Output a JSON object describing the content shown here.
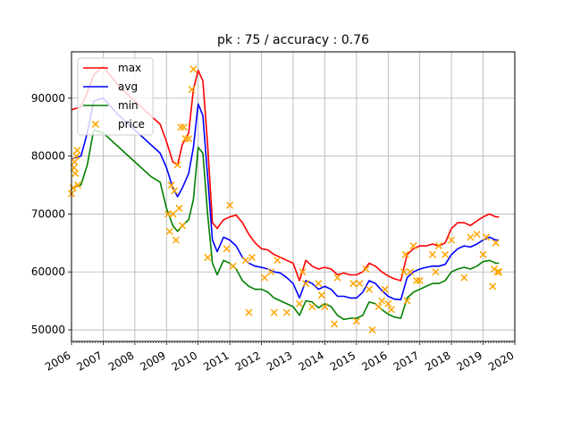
{
  "chart_data": {
    "type": "line",
    "title": "pk : 75 / accuracy : 0.76",
    "xlabel": "",
    "ylabel": "",
    "xlim": [
      2006.0,
      2020.0
    ],
    "ylim": [
      48000,
      98000
    ],
    "grid": true,
    "legend_position": "top-left",
    "x_ticks": [
      2006,
      2007,
      2008,
      2009,
      2010,
      2011,
      2012,
      2013,
      2014,
      2015,
      2016,
      2017,
      2018,
      2019,
      2020
    ],
    "x_tick_labels": [
      "2006",
      "2007",
      "2008",
      "2009",
      "2010",
      "2011",
      "2012",
      "2013",
      "2014",
      "2015",
      "2016",
      "2017",
      "2018",
      "2019",
      "2020"
    ],
    "y_ticks": [
      50000,
      60000,
      70000,
      80000,
      90000
    ],
    "y_tick_labels": [
      "50000",
      "60000",
      "70000",
      "80000",
      "90000"
    ],
    "series": [
      {
        "name": "max",
        "color": "#ff0000",
        "style": "line",
        "x": [
          2006.0,
          2006.3,
          2006.5,
          2006.7,
          2007.0,
          2007.5,
          2008.0,
          2008.5,
          2008.8,
          2009.0,
          2009.2,
          2009.35,
          2009.5,
          2009.7,
          2009.85,
          2010.0,
          2010.15,
          2010.3,
          2010.45,
          2010.6,
          2010.8,
          2011.0,
          2011.2,
          2011.4,
          2011.6,
          2011.8,
          2012.0,
          2012.2,
          2012.4,
          2012.6,
          2012.8,
          2013.0,
          2013.2,
          2013.4,
          2013.6,
          2013.8,
          2014.0,
          2014.2,
          2014.4,
          2014.6,
          2014.8,
          2015.0,
          2015.2,
          2015.4,
          2015.6,
          2015.8,
          2016.0,
          2016.2,
          2016.4,
          2016.6,
          2016.8,
          2017.0,
          2017.2,
          2017.4,
          2017.6,
          2017.8,
          2018.0,
          2018.2,
          2018.4,
          2018.6,
          2018.8,
          2019.0,
          2019.2,
          2019.4,
          2019.5
        ],
        "y": [
          88000,
          88500,
          91000,
          94000,
          95500,
          92000,
          89500,
          87000,
          85500,
          82500,
          79000,
          78500,
          82000,
          84000,
          91500,
          94800,
          93000,
          82000,
          68500,
          67500,
          69000,
          69500,
          69800,
          68500,
          66500,
          65000,
          64000,
          63800,
          63000,
          62500,
          62000,
          61500,
          58500,
          62000,
          61000,
          60500,
          60800,
          60500,
          59500,
          59800,
          59500,
          59500,
          60000,
          61500,
          61000,
          60000,
          59300,
          58800,
          58500,
          63000,
          64000,
          64500,
          64500,
          64800,
          64500,
          65000,
          67500,
          68500,
          68500,
          68000,
          68800,
          69500,
          70000,
          69500,
          69500
        ]
      },
      {
        "name": "avg",
        "color": "#0000ff",
        "style": "line",
        "x": [
          2006.0,
          2006.3,
          2006.5,
          2006.7,
          2007.0,
          2007.5,
          2008.0,
          2008.5,
          2008.8,
          2009.0,
          2009.2,
          2009.35,
          2009.5,
          2009.7,
          2009.85,
          2010.0,
          2010.15,
          2010.3,
          2010.45,
          2010.6,
          2010.8,
          2011.0,
          2011.2,
          2011.4,
          2011.6,
          2011.8,
          2012.0,
          2012.2,
          2012.4,
          2012.6,
          2012.8,
          2013.0,
          2013.2,
          2013.4,
          2013.6,
          2013.8,
          2014.0,
          2014.2,
          2014.4,
          2014.6,
          2014.8,
          2015.0,
          2015.2,
          2015.4,
          2015.6,
          2015.8,
          2016.0,
          2016.2,
          2016.4,
          2016.6,
          2016.8,
          2017.0,
          2017.2,
          2017.4,
          2017.6,
          2017.8,
          2018.0,
          2018.2,
          2018.4,
          2018.6,
          2018.8,
          2019.0,
          2019.2,
          2019.4,
          2019.5
        ],
        "y": [
          79500,
          80000,
          84000,
          89500,
          90000,
          87000,
          84500,
          82000,
          80500,
          78000,
          74500,
          73000,
          74500,
          77000,
          81500,
          89000,
          87000,
          76500,
          65500,
          63500,
          66000,
          65500,
          64500,
          62500,
          61500,
          61000,
          60800,
          60500,
          60000,
          59800,
          59000,
          58000,
          55500,
          58500,
          58000,
          57000,
          57500,
          57000,
          55800,
          55800,
          55500,
          55500,
          56500,
          58500,
          58000,
          56800,
          55800,
          55300,
          55200,
          59000,
          60000,
          60500,
          60800,
          61000,
          61000,
          61300,
          63000,
          64000,
          64500,
          64300,
          64800,
          65500,
          66000,
          65500,
          65500
        ]
      },
      {
        "name": "min",
        "color": "#008000",
        "style": "line",
        "x": [
          2006.0,
          2006.3,
          2006.5,
          2006.7,
          2007.0,
          2007.5,
          2008.0,
          2008.5,
          2008.8,
          2009.0,
          2009.2,
          2009.35,
          2009.5,
          2009.7,
          2009.85,
          2010.0,
          2010.15,
          2010.3,
          2010.45,
          2010.6,
          2010.8,
          2011.0,
          2011.2,
          2011.4,
          2011.6,
          2011.8,
          2012.0,
          2012.2,
          2012.4,
          2012.6,
          2012.8,
          2013.0,
          2013.2,
          2013.4,
          2013.6,
          2013.8,
          2014.0,
          2014.2,
          2014.4,
          2014.6,
          2014.8,
          2015.0,
          2015.2,
          2015.4,
          2015.6,
          2015.8,
          2016.0,
          2016.2,
          2016.4,
          2016.6,
          2016.8,
          2017.0,
          2017.2,
          2017.4,
          2017.6,
          2017.8,
          2018.0,
          2018.2,
          2018.4,
          2018.6,
          2018.8,
          2019.0,
          2019.2,
          2019.4,
          2019.5
        ],
        "y": [
          74500,
          75000,
          78500,
          84500,
          84000,
          81500,
          79000,
          76500,
          75500,
          71000,
          68000,
          67000,
          68000,
          69000,
          72500,
          81500,
          80500,
          70000,
          61500,
          59500,
          62000,
          61500,
          60500,
          58500,
          57500,
          57000,
          57000,
          56500,
          55500,
          55000,
          54500,
          54000,
          52500,
          55000,
          54800,
          53800,
          54500,
          54000,
          52500,
          51800,
          52000,
          52000,
          52500,
          54800,
          54500,
          53500,
          52700,
          52200,
          52000,
          55500,
          56500,
          57000,
          57500,
          58000,
          58000,
          58500,
          60000,
          60500,
          60800,
          60500,
          61000,
          61800,
          62000,
          61500,
          61500
        ]
      },
      {
        "name": "price",
        "color": "#ffa500",
        "style": "marker-x",
        "x": [
          2006.0,
          2006.05,
          2006.08,
          2006.1,
          2006.12,
          2006.15,
          2006.18,
          2006.2,
          2006.7,
          2009.05,
          2009.1,
          2009.15,
          2009.2,
          2009.25,
          2009.3,
          2009.35,
          2009.4,
          2009.45,
          2009.5,
          2009.55,
          2009.6,
          2009.7,
          2009.8,
          2009.85,
          2010.3,
          2010.9,
          2011.0,
          2011.1,
          2011.5,
          2011.6,
          2011.7,
          2012.1,
          2012.3,
          2012.4,
          2012.5,
          2012.8,
          2013.2,
          2013.3,
          2013.4,
          2013.6,
          2013.8,
          2013.9,
          2014.0,
          2014.3,
          2014.4,
          2014.9,
          2015.0,
          2015.1,
          2015.3,
          2015.4,
          2015.5,
          2015.7,
          2015.8,
          2015.9,
          2016.0,
          2016.1,
          2016.5,
          2016.55,
          2016.6,
          2016.7,
          2016.8,
          2016.9,
          2017.0,
          2017.4,
          2017.5,
          2017.6,
          2017.8,
          2018.0,
          2018.4,
          2018.6,
          2018.8,
          2019.0,
          2019.1,
          2019.3,
          2019.35,
          2019.4,
          2019.45,
          2019.5
        ],
        "y": [
          73500,
          74500,
          78000,
          79000,
          77000,
          80000,
          81000,
          75000,
          85500,
          70000,
          67000,
          75000,
          70000,
          74000,
          65500,
          78500,
          71000,
          85000,
          68000,
          85000,
          83000,
          83000,
          91500,
          95000,
          62500,
          64000,
          71500,
          61000,
          62000,
          53000,
          62500,
          59000,
          60000,
          53000,
          62000,
          53000,
          54500,
          60000,
          58000,
          54000,
          58000,
          56000,
          54000,
          51000,
          59000,
          58000,
          51500,
          58000,
          60500,
          57000,
          50000,
          54000,
          55000,
          57000,
          54500,
          53500,
          60000,
          63000,
          55000,
          60000,
          64500,
          58500,
          58500,
          63000,
          60000,
          64500,
          63000,
          65500,
          59000,
          66000,
          66500,
          63000,
          66000,
          57500,
          60500,
          65000,
          60000,
          60000
        ]
      }
    ]
  }
}
